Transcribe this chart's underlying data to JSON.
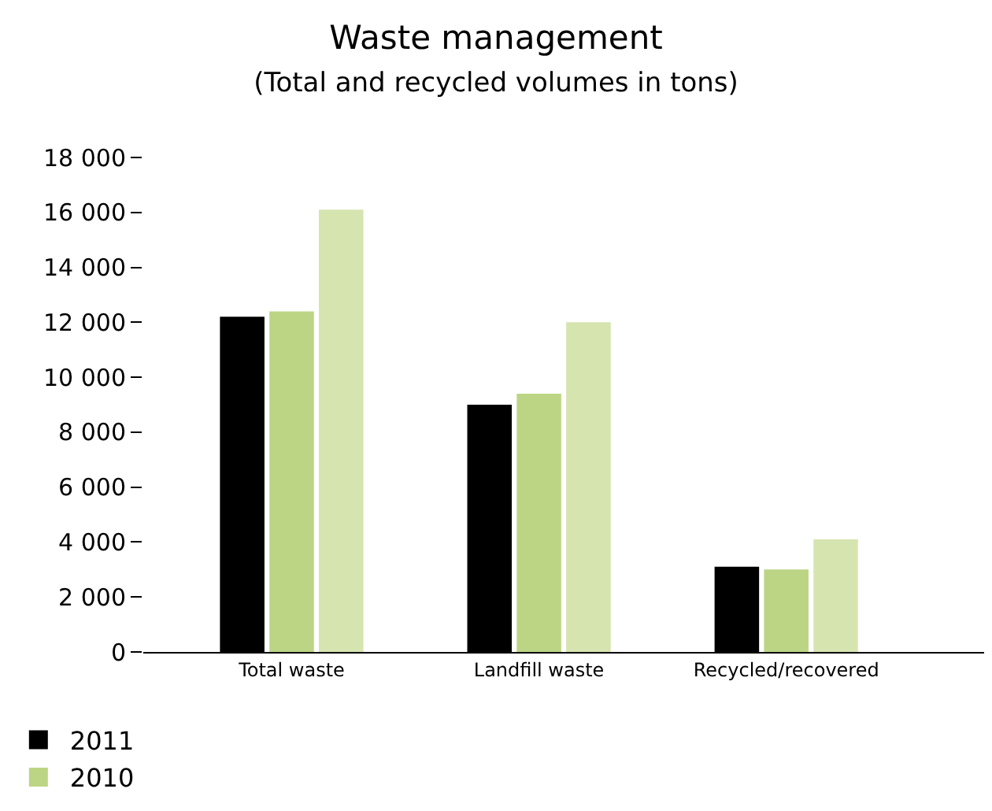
{
  "chart_data": {
    "type": "bar",
    "title": "Waste management",
    "subtitle": "(Total and recycled volumes in tons)",
    "categories": [
      "Total waste",
      "Landfill waste",
      "Recycled/recovered"
    ],
    "series": [
      {
        "name": "2011",
        "color": "#000000",
        "values": [
          12200,
          9000,
          3100
        ]
      },
      {
        "name": "2010",
        "color": "#bcd585",
        "values": [
          12400,
          9400,
          3000
        ]
      },
      {
        "color": "#d6e4b0",
        "values": [
          16100,
          12000,
          4100
        ]
      }
    ],
    "ylim": [
      0,
      18000
    ],
    "yticks": [
      0,
      {
        "value": 2000,
        "label": "2 000"
      },
      {
        "value": 4000,
        "label": "4 000"
      },
      {
        "value": 6000,
        "label": "6 000"
      },
      {
        "value": 8000,
        "label": "8 000"
      },
      {
        "value": 10000,
        "label": "10 000"
      },
      {
        "value": 12000,
        "label": "12 000"
      },
      {
        "value": 14000,
        "label": "14 000"
      },
      {
        "value": 16000,
        "label": "16 000"
      },
      {
        "value": 18000,
        "label": "18 000"
      }
    ],
    "legend": "bottom left"
  }
}
